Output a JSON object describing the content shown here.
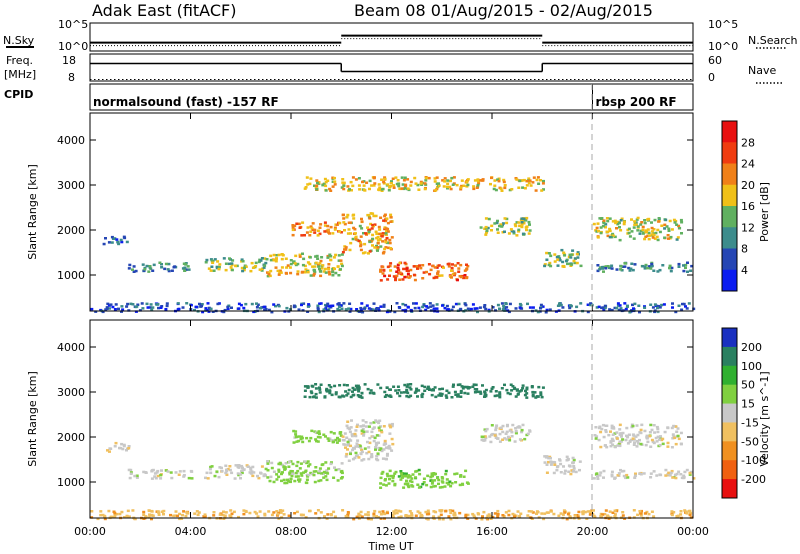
{
  "header": {
    "station": "Adak East (fitACF)",
    "beam_range": "Beam 08  01/Aug/2015 - 02/Aug/2015"
  },
  "colors": {
    "power_scale": [
      "#0a1cf0",
      "#2546b4",
      "#3c8c8c",
      "#60b060",
      "#f0c018",
      "#f08018",
      "#f03c10",
      "#e81010"
    ],
    "velocity_scale": [
      "#e81010",
      "#f06010",
      "#f09020",
      "#f0c060",
      "#c8c8c8",
      "#80d040",
      "#30b030",
      "#2a8060",
      "#1a30c0"
    ],
    "ground": "#c8c8c8"
  },
  "chart_data": [
    {
      "type": "line",
      "label_left": "N.Sky",
      "label_right": "N.Search",
      "ytick_left": [
        "10^5",
        "10^0"
      ],
      "ytick_right": [
        "10^5",
        "10^0"
      ],
      "xlim": [
        0,
        24
      ],
      "levels": [
        {
          "x0": 0,
          "x1": 10,
          "level": 0.3
        },
        {
          "x0": 10,
          "x1": 18,
          "level": 0.55
        },
        {
          "x0": 18,
          "x1": 24,
          "level": 0.3
        }
      ]
    },
    {
      "type": "line",
      "label_left": [
        "Freq.",
        "[MHz]"
      ],
      "label_right": "Nave",
      "ytick_left": [
        "18",
        "8"
      ],
      "ytick_right": [
        "60",
        "0"
      ],
      "freq_steps": [
        {
          "x0": 0,
          "x1": 10,
          "mhz": 14.5
        },
        {
          "x0": 10,
          "x1": 18,
          "mhz": 11.5
        },
        {
          "x0": 18,
          "x1": 24,
          "mhz": 14.5
        }
      ],
      "nave_level": 14.8
    },
    {
      "type": "table",
      "label": "CPID",
      "segments": [
        {
          "x0": 0,
          "x1": 20,
          "text": "normalsound (fast) -157 RF"
        },
        {
          "x0": 20,
          "x1": 24,
          "text": "rbsp 200 RF"
        }
      ]
    },
    {
      "type": "heatmap",
      "ylabel": "Slant Range [km]",
      "yticks": [
        "1000",
        "2000",
        "3000",
        "4000"
      ],
      "ylim": [
        200,
        4600
      ],
      "xlim": [
        0,
        24
      ],
      "colorbar_label": "Power [dB]",
      "colorbar_ticks": [
        "4",
        "8",
        "12",
        "16",
        "20",
        "24",
        "28"
      ],
      "echo_regions": [
        {
          "h0": 0.5,
          "h1": 1.5,
          "r0": 1700,
          "r1": 1900,
          "v": 7
        },
        {
          "h0": 1.5,
          "h1": 4.0,
          "r0": 1100,
          "r1": 1300,
          "v": 10
        },
        {
          "h0": 4.5,
          "h1": 7.0,
          "r0": 1100,
          "r1": 1400,
          "v": 14
        },
        {
          "h0": 7.0,
          "h1": 10.0,
          "r0": 1000,
          "r1": 1500,
          "v": 18
        },
        {
          "h0": 8.0,
          "h1": 10.0,
          "r0": 1900,
          "r1": 2200,
          "v": 22
        },
        {
          "h0": 10.0,
          "h1": 12.0,
          "r0": 1500,
          "r1": 2400,
          "v": 20
        },
        {
          "h0": 11.5,
          "h1": 15.0,
          "r0": 900,
          "r1": 1300,
          "v": 24
        },
        {
          "h0": 15.5,
          "h1": 17.5,
          "r0": 1900,
          "r1": 2300,
          "v": 15
        },
        {
          "h0": 18.0,
          "h1": 19.5,
          "r0": 1200,
          "r1": 1600,
          "v": 14
        },
        {
          "h0": 20.0,
          "h1": 23.5,
          "r0": 1800,
          "r1": 2300,
          "v": 16
        },
        {
          "h0": 20.0,
          "h1": 24.0,
          "r0": 1100,
          "r1": 1300,
          "v": 10
        },
        {
          "h0": 0.0,
          "h1": 24.0,
          "r0": 200,
          "r1": 400,
          "v": 6
        },
        {
          "h0": 8.5,
          "h1": 18.0,
          "r0": 2900,
          "r1": 3200,
          "v": 18
        }
      ]
    },
    {
      "type": "heatmap",
      "ylabel": "Slant Range [km]",
      "yticks": [
        "1000",
        "2000",
        "3000",
        "4000"
      ],
      "ylim": [
        200,
        4600
      ],
      "xlabel": "Time UT",
      "xticks": [
        "00:00",
        "04:00",
        "08:00",
        "12:00",
        "16:00",
        "20:00",
        "00:00"
      ],
      "xlim": [
        0,
        24
      ],
      "colorbar_label": "Velocity [m s^-1]",
      "colorbar_ticks": [
        "200",
        "100",
        "50",
        "15",
        "-15",
        "-50",
        "-100",
        "-200"
      ],
      "echo_regions": [
        {
          "h0": 0.5,
          "h1": 1.5,
          "r0": 1700,
          "r1": 1900,
          "v": -5
        },
        {
          "h0": 1.5,
          "h1": 4.0,
          "r0": 1100,
          "r1": 1300,
          "v": 0
        },
        {
          "h0": 4.5,
          "h1": 7.0,
          "r0": 1100,
          "r1": 1400,
          "v": 0
        },
        {
          "h0": 7.0,
          "h1": 10.0,
          "r0": 1000,
          "r1": 1500,
          "v": 25
        },
        {
          "h0": 8.0,
          "h1": 10.0,
          "r0": 1900,
          "r1": 2200,
          "v": 30
        },
        {
          "h0": 10.0,
          "h1": 12.0,
          "r0": 1500,
          "r1": 2400,
          "v": 0
        },
        {
          "h0": 11.5,
          "h1": 15.0,
          "r0": 900,
          "r1": 1300,
          "v": 35
        },
        {
          "h0": 15.5,
          "h1": 17.5,
          "r0": 1900,
          "r1": 2300,
          "v": 0
        },
        {
          "h0": 18.0,
          "h1": 19.5,
          "r0": 1200,
          "r1": 1600,
          "v": 0
        },
        {
          "h0": 20.0,
          "h1": 23.5,
          "r0": 1800,
          "r1": 2300,
          "v": 0
        },
        {
          "h0": 20.0,
          "h1": 24.0,
          "r0": 1100,
          "r1": 1300,
          "v": 0
        },
        {
          "h0": 0.0,
          "h1": 24.0,
          "r0": 200,
          "r1": 400,
          "v": -40
        },
        {
          "h0": 8.5,
          "h1": 18.0,
          "r0": 2900,
          "r1": 3200,
          "v": 150
        }
      ]
    }
  ]
}
